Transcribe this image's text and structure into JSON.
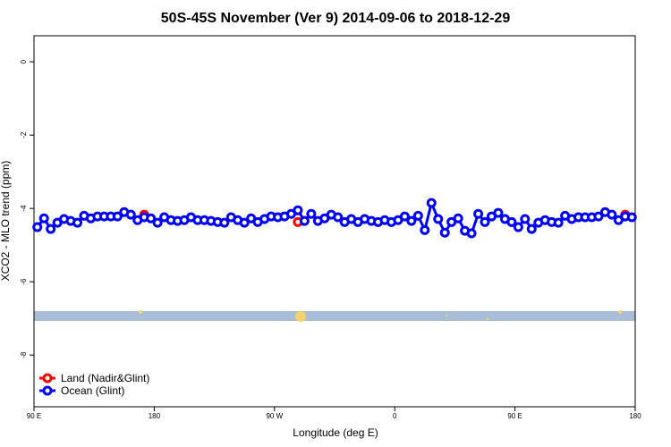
{
  "chart_data": {
    "type": "line",
    "title": "50S-45S November (Ver 9)   2014-09-06 to 2018-12-29",
    "x_label": "Longitude (deg E)",
    "y_label": "XCO2 - MLO trend (ppm)",
    "xlim": [
      90,
      540
    ],
    "xticks": [
      {
        "value": 90,
        "label": "90 E"
      },
      180,
      {
        "value": 270,
        "label": "90 W"
      },
      {
        "value": 360,
        "label": "0"
      },
      {
        "value": 450,
        "label": "90 E"
      },
      {
        "value": 540,
        "label": "180"
      }
    ],
    "ylim": [
      0.71,
      -9.41
    ],
    "yticks": [
      0,
      -2,
      -4,
      -6,
      -8
    ],
    "legend": "bottom-left",
    "series": [
      {
        "name": "Land (Nadir&Glint)",
        "color": "#ff0000",
        "x": [
          172.5,
          287.5,
          532.5
        ],
        "values": [
          -4.17,
          -4.37,
          -4.17
        ]
      },
      {
        "name": "Ocean (Glint)",
        "color": "#0000ff",
        "x": [
          92.5,
          97.5,
          102.5,
          107.5,
          112.5,
          117.5,
          122.5,
          127.5,
          132.5,
          137.5,
          142.5,
          147.5,
          152.5,
          157.5,
          162.5,
          167.5,
          172.5,
          177.5,
          182.5,
          187.5,
          192.5,
          197.5,
          202.5,
          207.5,
          212.5,
          217.5,
          222.5,
          227.5,
          232.5,
          237.5,
          242.5,
          247.5,
          252.5,
          257.5,
          262.5,
          267.5,
          272.5,
          277.5,
          282.5,
          287.5,
          292.5,
          297.5,
          302.5,
          307.5,
          312.5,
          317.5,
          322.5,
          327.5,
          332.5,
          337.5,
          342.5,
          347.5,
          352.5,
          357.5,
          362.5,
          367.5,
          372.5,
          377.5,
          382.5,
          387.5,
          392.5,
          397.5,
          402.5,
          407.5,
          412.5,
          417.5,
          422.5,
          427.5,
          432.5,
          437.5,
          442.5,
          447.5,
          452.5,
          457.5,
          462.5,
          467.5,
          472.5,
          477.5,
          482.5,
          487.5,
          492.5,
          497.5,
          502.5,
          507.5,
          512.5,
          517.5,
          522.5,
          527.5,
          532.5,
          537.5
        ],
        "values": [
          -4.51,
          -4.27,
          -4.56,
          -4.39,
          -4.29,
          -4.34,
          -4.39,
          -4.2,
          -4.27,
          -4.22,
          -4.22,
          -4.22,
          -4.22,
          -4.1,
          -4.17,
          -4.32,
          -4.24,
          -4.27,
          -4.39,
          -4.24,
          -4.32,
          -4.34,
          -4.32,
          -4.24,
          -4.32,
          -4.32,
          -4.34,
          -4.37,
          -4.39,
          -4.24,
          -4.32,
          -4.39,
          -4.27,
          -4.37,
          -4.29,
          -4.22,
          -4.24,
          -4.22,
          -4.15,
          -4.05,
          -4.34,
          -4.15,
          -4.34,
          -4.27,
          -4.17,
          -4.24,
          -4.37,
          -4.29,
          -4.37,
          -4.29,
          -4.34,
          -4.37,
          -4.32,
          -4.37,
          -4.32,
          -4.22,
          -4.34,
          -4.2,
          -4.59,
          -3.85,
          -4.29,
          -4.66,
          -4.37,
          -4.27,
          -4.61,
          -4.68,
          -4.15,
          -4.37,
          -4.22,
          -4.12,
          -4.29,
          -4.37,
          -4.51,
          -4.29,
          -4.56,
          -4.39,
          -4.32,
          -4.37,
          -4.39,
          -4.2,
          -4.29,
          -4.24,
          -4.24,
          -4.24,
          -4.22,
          -4.1,
          -4.17,
          -4.32,
          -4.22,
          -4.24
        ]
      }
    ]
  }
}
